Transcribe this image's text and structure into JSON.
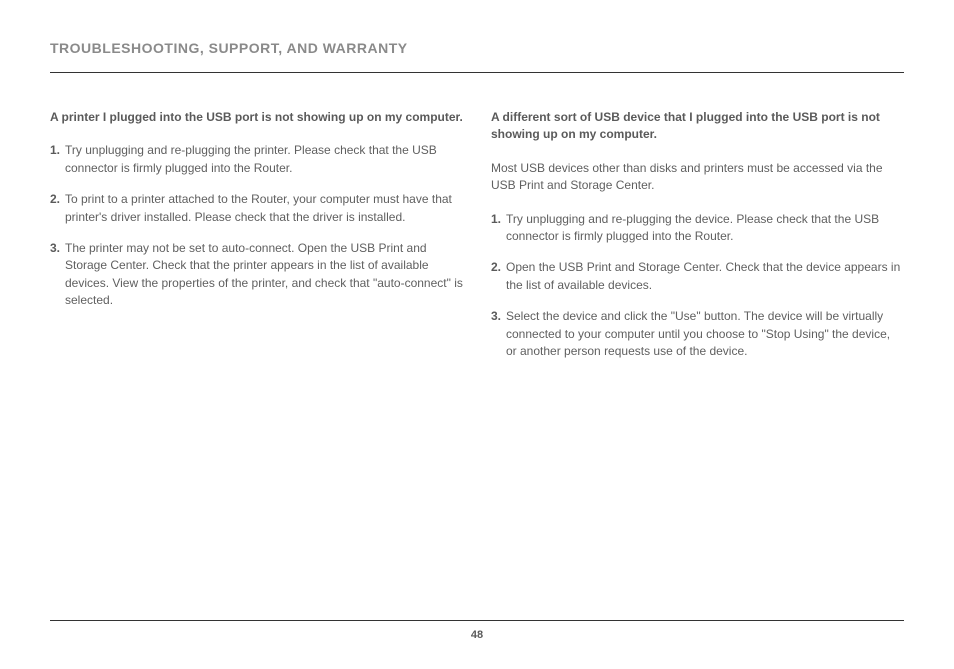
{
  "header": {
    "title": "TROUBLESHOOTING, SUPPORT, AND WARRANTY"
  },
  "left": {
    "question": "A printer I plugged into the USB port is not showing up on my computer.",
    "items": [
      "Try unplugging and re-plugging the printer. Please check that the USB connector is firmly plugged into the Router.",
      "To print to a printer attached to the Router, your computer must have that printer's driver installed. Please check that the driver is installed.",
      "The printer may not be set to auto-connect. Open the USB Print and Storage Center. Check that the printer appears in the list of available devices. View the properties of the printer, and check that \"auto-connect\" is selected."
    ]
  },
  "right": {
    "question": "A different sort of USB device that I plugged into the USB port is not showing up on my computer.",
    "intro": "Most USB devices other than disks and printers must be accessed via the USB Print and Storage Center.",
    "items": [
      "Try unplugging and re-plugging the device. Please check that the USB connector is firmly plugged into the Router.",
      "Open the USB Print and Storage Center. Check that the device appears in the list of available devices.",
      "Select the device and click the \"Use\" button. The device will be virtually connected to your computer until you choose to \"Stop Using\" the device, or another person requests use of the device."
    ]
  },
  "footer": {
    "page_number": "48"
  }
}
